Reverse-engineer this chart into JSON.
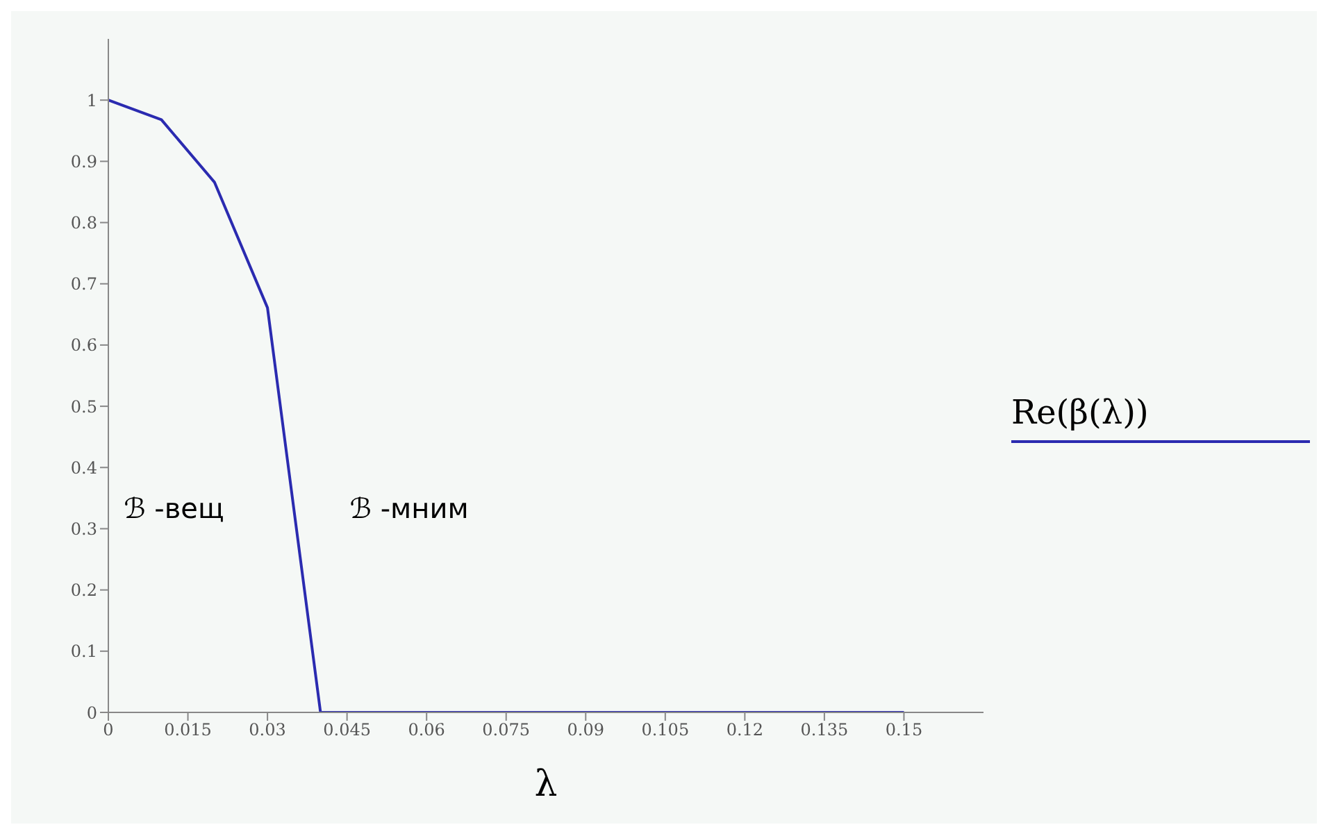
{
  "chart_data": {
    "type": "line",
    "xlabel": "λ",
    "x": [
      0,
      0.01,
      0.02,
      0.03,
      0.04,
      0.15
    ],
    "series": [
      {
        "name": "Re(β(λ))",
        "color": "#2b2bb0",
        "values": [
          1,
          0.968,
          0.866,
          0.661,
          0,
          0
        ]
      }
    ],
    "xlim": [
      0,
      0.165
    ],
    "xticks": [
      0,
      0.015,
      0.03,
      0.045,
      0.06,
      0.075,
      0.09,
      0.105,
      0.12,
      0.135,
      0.15
    ],
    "ylim": [
      0,
      1.1
    ],
    "yticks": [
      0,
      0.1,
      0.2,
      0.3,
      0.4,
      0.5,
      0.6,
      0.7,
      0.8,
      0.9,
      1
    ],
    "annotations": [
      "ℬ -вещ",
      "ℬ -мним"
    ],
    "grid": false,
    "legend": "right",
    "marker": "none",
    "line_style": "solid"
  }
}
